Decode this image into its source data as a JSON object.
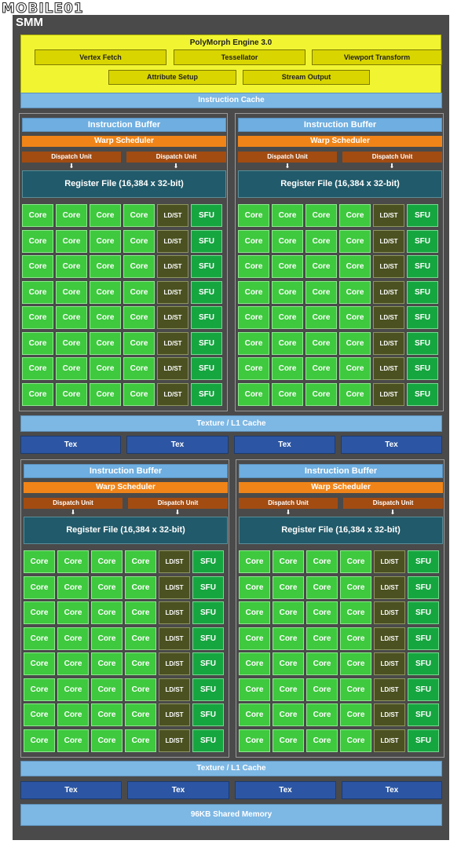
{
  "watermark": "MOBILE01",
  "smm_label": "SMM",
  "polymorph": {
    "title": "PolyMorph Engine 3.0",
    "row1": [
      "Vertex Fetch",
      "Tessellator",
      "Viewport Transform"
    ],
    "row2": [
      "Attribute Setup",
      "Stream Output"
    ]
  },
  "instruction_cache": "Instruction Cache",
  "texture_l1_cache": "Texture / L1 Cache",
  "tex_unit": "Tex",
  "shared_memory": "96KB Shared Memory",
  "processing_block": {
    "instruction_buffer": "Instruction Buffer",
    "warp_scheduler": "Warp Scheduler",
    "dispatch_unit": "Dispatch Unit",
    "dispatch_arrow": "⬇",
    "register_file": "Register File (16,384 x 32-bit)",
    "core": "Core",
    "ldst": "LD/ST",
    "sfu": "SFU"
  },
  "colors": {
    "polymorph": "#f1f531",
    "cache": "#7db7e4",
    "tex": "#2c56a3",
    "warp_scheduler": "#f08418",
    "dispatch_unit": "#a24c12",
    "register_file": "#215a6a",
    "core": "#3ec93e",
    "ldst": "#4b5120",
    "sfu": "#16a640"
  }
}
